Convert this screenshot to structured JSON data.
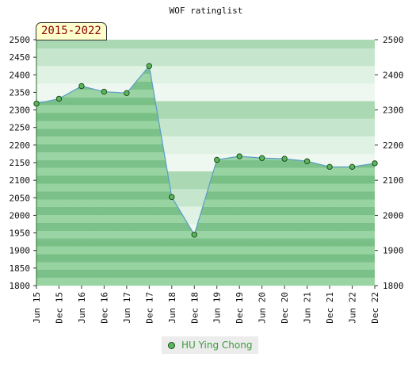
{
  "chart_data": {
    "type": "area",
    "title": "WOF ratinglist",
    "period_label": "2015-2022",
    "categories": [
      "Jun 15",
      "Dec 15",
      "Jun 16",
      "Dec 16",
      "Jun 17",
      "Dec 17",
      "Jun 18",
      "Dec 18",
      "Jun 19",
      "Dec 19",
      "Jun 20",
      "Dec 20",
      "Jun 21",
      "Dec 21",
      "Jun 22",
      "Dec 22"
    ],
    "series": [
      {
        "name": "HU Ying Chong",
        "values": [
          2318,
          2332,
          2368,
          2352,
          2348,
          2425,
          2052,
          1945,
          2158,
          2168,
          2163,
          2161,
          2154,
          2138,
          2138,
          2148
        ]
      }
    ],
    "yticks_left": [
      1800,
      1850,
      1900,
      1950,
      2000,
      2050,
      2100,
      2150,
      2200,
      2250,
      2300,
      2350,
      2400,
      2450,
      2500
    ],
    "yticks_right": [
      1800,
      1900,
      2000,
      2100,
      2200,
      2300,
      2400,
      2500
    ],
    "ylim": [
      1800,
      2500
    ],
    "xlabel": "",
    "ylabel": "",
    "colors": {
      "fill": "#6cbf6c",
      "line": "#5a9cc8",
      "marker": "#5ab85a",
      "marker_edge": "#1e4d1e",
      "legend_text": "#3a9a3a"
    }
  }
}
